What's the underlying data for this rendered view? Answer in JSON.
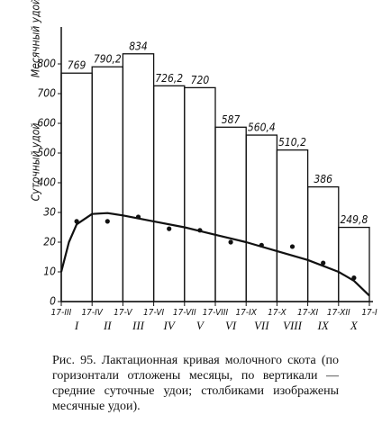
{
  "chart_data": {
    "type": "bar",
    "y_label": "Месячный удой",
    "y2_label": "Суточный удой",
    "xlim": [
      0,
      10
    ],
    "xticks": [
      {
        "value": 0,
        "label": "17-III"
      },
      {
        "value": 1,
        "label": "17-IV"
      },
      {
        "value": 2,
        "label": "17-V"
      },
      {
        "value": 3,
        "label": "17-VI"
      },
      {
        "value": 4,
        "label": "17-VII"
      },
      {
        "value": 5,
        "label": "17-VIII"
      },
      {
        "value": 6,
        "label": "17-IX"
      },
      {
        "value": 7,
        "label": "17-X"
      },
      {
        "value": 8,
        "label": "17-XI"
      },
      {
        "value": 9,
        "label": "17-XII"
      },
      {
        "value": 10,
        "label": "17-I"
      }
    ],
    "categories": [
      "I",
      "II",
      "III",
      "IV",
      "V",
      "VI",
      "VII",
      "VIII",
      "IX",
      "X"
    ],
    "values": [
      769,
      790.2,
      834,
      726.2,
      720,
      587,
      560.4,
      510.2,
      386,
      249.8
    ],
    "value_labels": [
      "769",
      "790,2",
      "834",
      "726,2",
      "720",
      "587",
      "560,4",
      "510,2",
      "386",
      "249,8"
    ],
    "ylim": [
      0,
      900
    ],
    "yticks": [
      400,
      500,
      600,
      700,
      800
    ],
    "y2lim": [
      0,
      90
    ],
    "y2ticks": [
      0,
      10,
      20,
      30
    ],
    "curve": {
      "axis": "y2",
      "x": [
        0,
        0.25,
        0.5,
        1,
        1.5,
        2,
        3,
        4,
        5,
        6,
        7,
        8,
        9,
        9.5,
        10
      ],
      "values": [
        10,
        20,
        26,
        29.5,
        29.8,
        29,
        27,
        25,
        22.5,
        20,
        17,
        14,
        10,
        7,
        2
      ]
    },
    "points": {
      "axis": "y2",
      "x": [
        0.5,
        1.5,
        2.5,
        3.5,
        4.5,
        5.5,
        6.5,
        7.5,
        8.5,
        9.5
      ],
      "values": [
        27,
        27,
        28.5,
        24.5,
        24,
        20,
        19,
        18.5,
        13,
        8
      ]
    },
    "color": "#111111"
  },
  "caption": "Рис. 95. Лактационная кривая молочного скота (по горизонтали отложены месяцы, по вертикали — средние суточные удои; столбиками изображены месячные удои)."
}
